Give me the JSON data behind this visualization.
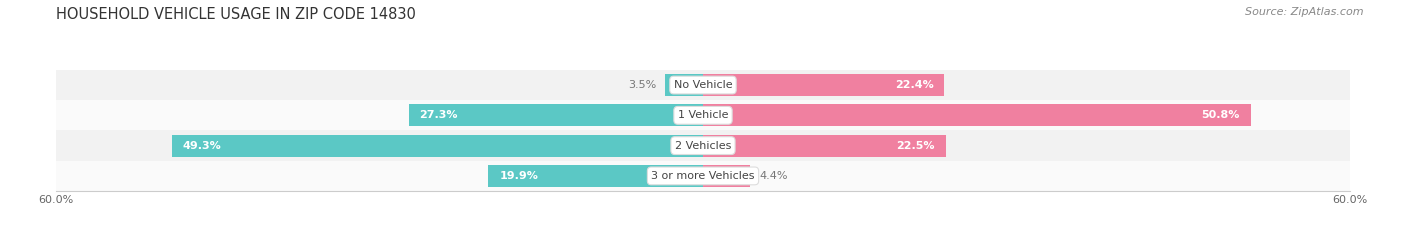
{
  "title": "HOUSEHOLD VEHICLE USAGE IN ZIP CODE 14830",
  "source": "Source: ZipAtlas.com",
  "categories": [
    "No Vehicle",
    "1 Vehicle",
    "2 Vehicles",
    "3 or more Vehicles"
  ],
  "owner_values": [
    3.5,
    27.3,
    49.3,
    19.9
  ],
  "renter_values": [
    22.4,
    50.8,
    22.5,
    4.4
  ],
  "owner_color": "#5BC8C5",
  "renter_color": "#F080A0",
  "label_color_dark": "#777777",
  "label_color_white": "#FFFFFF",
  "axis_max": 60.0,
  "background_color": "#FFFFFF",
  "row_bg_even": "#F2F2F2",
  "row_bg_odd": "#FAFAFA",
  "title_fontsize": 10.5,
  "source_fontsize": 8,
  "bar_label_fontsize": 8,
  "category_fontsize": 8,
  "axis_label_fontsize": 8,
  "legend_fontsize": 8.5
}
